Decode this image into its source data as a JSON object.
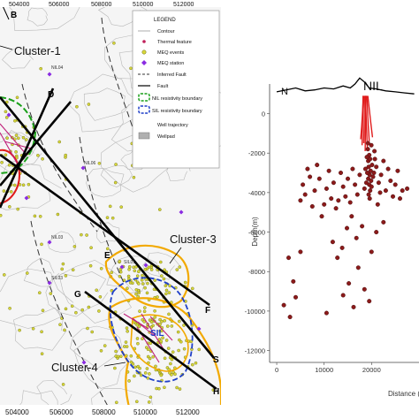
{
  "map": {
    "x_ticks": [
      "504000",
      "506000",
      "508000",
      "510000",
      "512000"
    ],
    "x_ticks_bottom": [
      "504000",
      "506000",
      "508000",
      "510000",
      "512000"
    ],
    "cluster_labels": [
      "Cluster-1",
      "Cluster-3",
      "Cluster-4"
    ],
    "line_letters": [
      "B",
      "D",
      "E",
      "F",
      "G",
      "H",
      "S"
    ],
    "sil_label": "SIL",
    "well_labels": [
      "NIL04",
      "NIL06",
      "NIL03",
      "SIL01",
      "SIL03"
    ],
    "legend": {
      "title": "LEGEND",
      "items": [
        "Contour",
        "Thermal feature",
        "MEQ events",
        "MEQ station",
        "Inferred Fault",
        "Fault",
        "NIL resistivity boundary",
        "SIL resistivity boundary",
        "Well trajectory",
        "Wellpad"
      ]
    },
    "colors": {
      "meq_event": "#d8d83a",
      "meq_station": "#8a2be2",
      "thermal": "#c0205a",
      "nil_boundary": "#1aa01a",
      "sil_boundary": "#1f3fc8",
      "cluster_outline": "#f2a900",
      "fault": "#000000",
      "red_zone": "#e01b1b"
    }
  },
  "chart_data": {
    "type": "scatter",
    "title": "",
    "label_north": "N",
    "label_feature": "NIL",
    "xlabel": "Distance (m",
    "ylabel": "Depth(m)",
    "xlim": [
      -1500,
      30000
    ],
    "ylim": [
      -12600,
      1500
    ],
    "x_ticks": [
      0,
      10000,
      20000
    ],
    "y_ticks": [
      0,
      -2000,
      -4000,
      -6000,
      -8000,
      -10000,
      -12000
    ],
    "grid": false,
    "marker_color": "#8b1a1a",
    "topography": [
      [
        0,
        1100
      ],
      [
        2000,
        1200
      ],
      [
        4000,
        1300
      ],
      [
        6000,
        1150
      ],
      [
        8000,
        1200
      ],
      [
        10000,
        1300
      ],
      [
        12000,
        1250
      ],
      [
        14000,
        1400
      ],
      [
        15500,
        1300
      ],
      [
        16500,
        1500
      ],
      [
        17500,
        1800
      ],
      [
        18500,
        1600
      ],
      [
        19500,
        1300
      ],
      [
        21000,
        1250
      ],
      [
        23000,
        1150
      ],
      [
        25000,
        1100
      ],
      [
        27000,
        1050
      ],
      [
        29000,
        1000
      ]
    ],
    "well_traces": [
      [
        [
          18200,
          900
        ],
        [
          18100,
          -300
        ],
        [
          18000,
          -1600
        ]
      ],
      [
        [
          18500,
          900
        ],
        [
          18450,
          -500
        ],
        [
          18350,
          -1500
        ]
      ],
      [
        [
          18700,
          900
        ],
        [
          18900,
          -400
        ],
        [
          19100,
          -1700
        ]
      ],
      [
        [
          19000,
          900
        ],
        [
          19300,
          -600
        ],
        [
          19500,
          -1400
        ]
      ],
      [
        [
          19200,
          900
        ],
        [
          19800,
          -400
        ],
        [
          20200,
          -1200
        ]
      ],
      [
        [
          18300,
          900
        ],
        [
          17900,
          -700
        ],
        [
          17700,
          -1300
        ]
      ],
      [
        [
          18800,
          900
        ],
        [
          18700,
          -800
        ],
        [
          18650,
          -1900
        ]
      ]
    ],
    "events": [
      {
        "x": 19200,
        "y": -1800
      },
      {
        "x": 19500,
        "y": -2100
      },
      {
        "x": 19300,
        "y": -2400
      },
      {
        "x": 19700,
        "y": -2300
      },
      {
        "x": 19400,
        "y": -2700
      },
      {
        "x": 19800,
        "y": -2900
      },
      {
        "x": 19600,
        "y": -3100
      },
      {
        "x": 19300,
        "y": -3300
      },
      {
        "x": 19900,
        "y": -3400
      },
      {
        "x": 19500,
        "y": -3600
      },
      {
        "x": 19100,
        "y": -3000
      },
      {
        "x": 20100,
        "y": -2600
      },
      {
        "x": 19000,
        "y": -2200
      },
      {
        "x": 20000,
        "y": -3700
      },
      {
        "x": 19700,
        "y": -3900
      },
      {
        "x": 18900,
        "y": -3500
      },
      {
        "x": 19400,
        "y": -4100
      },
      {
        "x": 20300,
        "y": -3200
      },
      {
        "x": 18700,
        "y": -2800
      },
      {
        "x": 19600,
        "y": -4300
      },
      {
        "x": 20500,
        "y": -3000
      },
      {
        "x": 18500,
        "y": -3800
      },
      {
        "x": 21000,
        "y": -2700
      },
      {
        "x": 21500,
        "y": -3500
      },
      {
        "x": 22000,
        "y": -3100
      },
      {
        "x": 22500,
        "y": -2400
      },
      {
        "x": 23000,
        "y": -3900
      },
      {
        "x": 23500,
        "y": -2800
      },
      {
        "x": 24000,
        "y": -3400
      },
      {
        "x": 24500,
        "y": -4200
      },
      {
        "x": 25000,
        "y": -3600
      },
      {
        "x": 25500,
        "y": -2900
      },
      {
        "x": 26500,
        "y": -3900
      },
      {
        "x": 27500,
        "y": -3800
      },
      {
        "x": 26000,
        "y": -4300
      },
      {
        "x": 21800,
        "y": -4000
      },
      {
        "x": 17500,
        "y": -3100
      },
      {
        "x": 17000,
        "y": -4100
      },
      {
        "x": 16500,
        "y": -3600
      },
      {
        "x": 16000,
        "y": -2800
      },
      {
        "x": 15500,
        "y": -4500
      },
      {
        "x": 15000,
        "y": -3300
      },
      {
        "x": 14500,
        "y": -4200
      },
      {
        "x": 14000,
        "y": -3700
      },
      {
        "x": 13500,
        "y": -3000
      },
      {
        "x": 13000,
        "y": -4400
      },
      {
        "x": 12500,
        "y": -4800
      },
      {
        "x": 12000,
        "y": -3500
      },
      {
        "x": 11500,
        "y": -4300
      },
      {
        "x": 11000,
        "y": -2900
      },
      {
        "x": 10500,
        "y": -3800
      },
      {
        "x": 10000,
        "y": -4600
      },
      {
        "x": 9500,
        "y": -5200
      },
      {
        "x": 9000,
        "y": -3300
      },
      {
        "x": 8500,
        "y": -2600
      },
      {
        "x": 8000,
        "y": -3900
      },
      {
        "x": 7500,
        "y": -4700
      },
      {
        "x": 7000,
        "y": -3200
      },
      {
        "x": 6500,
        "y": -2800
      },
      {
        "x": 6000,
        "y": -4100
      },
      {
        "x": 5500,
        "y": -3600
      },
      {
        "x": 5000,
        "y": -4400
      },
      {
        "x": 15800,
        "y": -5200
      },
      {
        "x": 14800,
        "y": -5800
      },
      {
        "x": 16800,
        "y": -6300
      },
      {
        "x": 13800,
        "y": -6800
      },
      {
        "x": 12800,
        "y": -7300
      },
      {
        "x": 11800,
        "y": -6500
      },
      {
        "x": 18000,
        "y": -5700
      },
      {
        "x": 17200,
        "y": -7800
      },
      {
        "x": 15200,
        "y": -8600
      },
      {
        "x": 14000,
        "y": -9200
      },
      {
        "x": 16200,
        "y": -9800
      },
      {
        "x": 18500,
        "y": -8900
      },
      {
        "x": 2500,
        "y": -7300
      },
      {
        "x": 3500,
        "y": -8500
      },
      {
        "x": 1500,
        "y": -9700
      },
      {
        "x": 4000,
        "y": -9300
      },
      {
        "x": 2800,
        "y": -10300
      },
      {
        "x": 5000,
        "y": -7000
      },
      {
        "x": 21000,
        "y": -6000
      },
      {
        "x": 20000,
        "y": -7000
      },
      {
        "x": 22500,
        "y": -5500
      },
      {
        "x": 19500,
        "y": -9500
      },
      {
        "x": 10500,
        "y": -10100
      },
      {
        "x": 21300,
        "y": -4600
      },
      {
        "x": 20700,
        "y": -2300
      },
      {
        "x": 19950,
        "y": -1600
      },
      {
        "x": 19250,
        "y": -1500
      },
      {
        "x": 20600,
        "y": -1900
      }
    ]
  }
}
